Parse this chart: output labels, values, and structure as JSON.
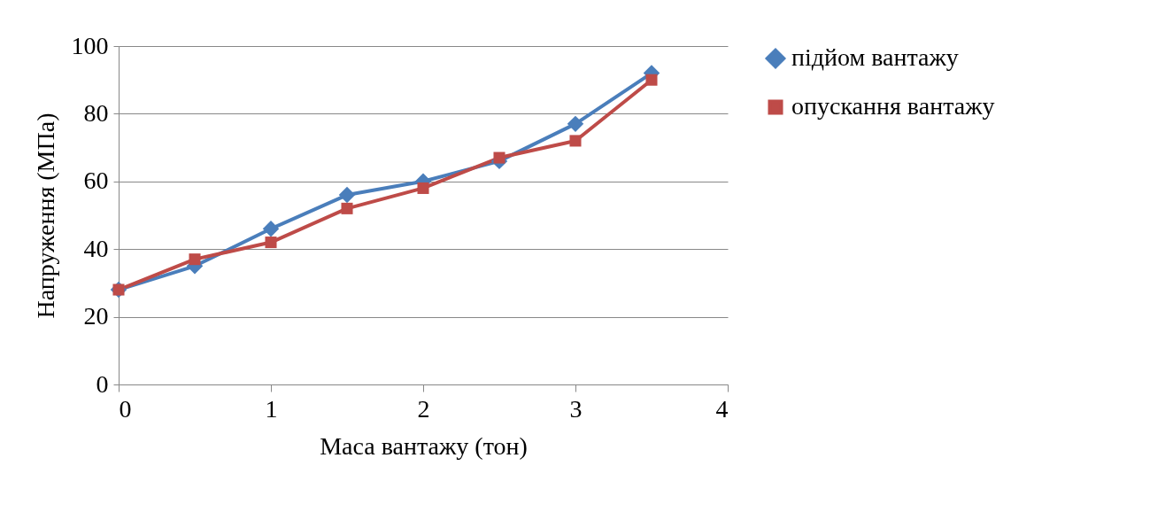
{
  "chart_data": {
    "type": "line",
    "xlabel": "Маса вантажу (тон)",
    "ylabel": "Напруження (МПа)",
    "x": [
      0,
      0.5,
      1,
      1.5,
      2,
      2.5,
      3,
      3.5
    ],
    "series": [
      {
        "name": "підйом вантажу",
        "color": "#4a7ebb",
        "marker": "diamond",
        "values": [
          28,
          35,
          46,
          56,
          60,
          66,
          77,
          92
        ]
      },
      {
        "name": "опускання вантажу",
        "color": "#be4b48",
        "marker": "square",
        "values": [
          28,
          37,
          42,
          52,
          58,
          67,
          72,
          90
        ]
      }
    ],
    "xlim": [
      0,
      4
    ],
    "xticks": [
      0,
      1,
      2,
      3,
      4
    ],
    "ylim": [
      0,
      100
    ],
    "yticks": [
      0,
      20,
      40,
      60,
      80,
      100
    ],
    "grid": "y",
    "legend": "right",
    "line_style": "solid"
  }
}
